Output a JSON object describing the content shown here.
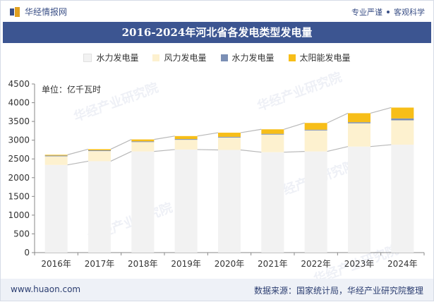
{
  "header": {
    "brand": "华经情报网",
    "tagline_1": "专业严谨",
    "tagline_2": "客观科学"
  },
  "footer": {
    "website": "www.huaon.com",
    "source": "数据来源：国家统计局，华经产业研究院整理"
  },
  "watermark": "华经产业研究院",
  "colors": {
    "hydro": "#f2f2f2",
    "wind": "#fdf1cf",
    "thermal": "#7b8fb5",
    "solar": "#f7be18",
    "line": "#b8b8b8",
    "title_bg": "#3c5591"
  },
  "chart_data": {
    "type": "bar",
    "stacked": true,
    "title": "2016-2024年河北省各发电类型发电量",
    "unit_label": "单位：亿千瓦时",
    "categories": [
      "2016年",
      "2017年",
      "2018年",
      "2019年",
      "2020年",
      "2021年",
      "2022年",
      "2023年",
      "2024年"
    ],
    "series": [
      {
        "name": "水力发电量",
        "values": [
          2340,
          2440,
          2700,
          2750,
          2740,
          2680,
          2700,
          2830,
          2880
        ]
      },
      {
        "name": "风力发电量",
        "values": [
          230,
          270,
          250,
          260,
          330,
          470,
          560,
          620,
          650
        ]
      },
      {
        "name": "水力发电量",
        "values": [
          20,
          20,
          20,
          20,
          20,
          20,
          20,
          30,
          50
        ]
      },
      {
        "name": "太阳能发电量",
        "values": [
          20,
          30,
          50,
          80,
          110,
          120,
          180,
          240,
          290
        ]
      }
    ],
    "ylim": [
      0,
      4500
    ],
    "yticks": [
      0,
      500,
      1000,
      1500,
      2000,
      2500,
      3000,
      3500,
      4000,
      4500
    ],
    "legend_position": "top-center",
    "grid": false
  }
}
